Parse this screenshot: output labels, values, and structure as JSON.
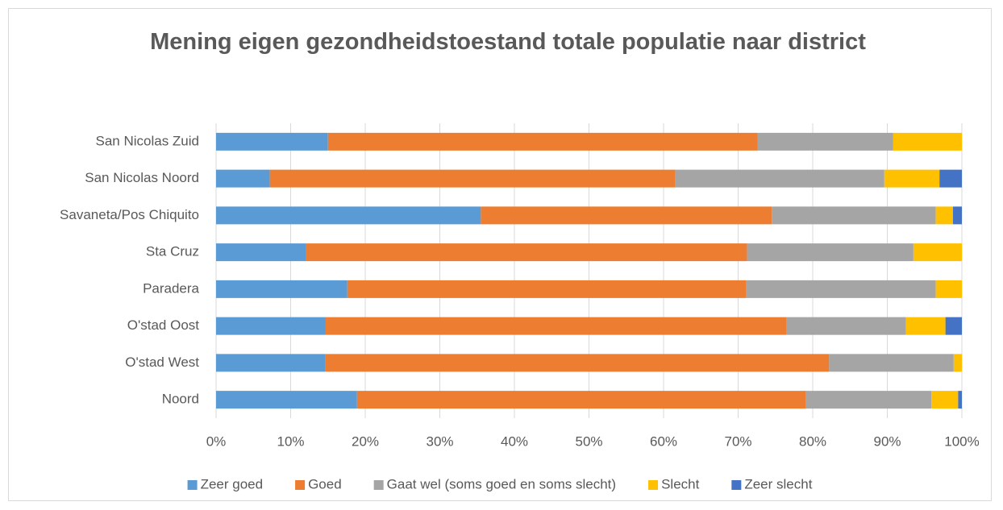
{
  "chart_data": {
    "type": "stacked_bar_horizontal",
    "title": "Mening eigen gezondheidstoestand totale populatie naar district",
    "categories": [
      "Noord",
      "O'stad West",
      "O'stad Oost",
      "Paradera",
      "Sta Cruz",
      "Savaneta/Pos Chiquito",
      "San Nicolas Noord",
      "San Nicolas Zuid"
    ],
    "series": [
      {
        "name": "Zeer goed",
        "color": "#5b9bd5",
        "values": [
          18.9,
          14.6,
          14.7,
          17.6,
          12.0,
          35.5,
          7.2,
          15.0
        ]
      },
      {
        "name": "Goed",
        "color": "#ed7d31",
        "values": [
          60.2,
          67.6,
          61.8,
          53.5,
          59.2,
          39.0,
          54.4,
          57.6
        ]
      },
      {
        "name": "Gaat wel (soms goed en soms slecht)",
        "color": "#a5a5a5",
        "values": [
          16.8,
          16.7,
          16.0,
          25.4,
          22.3,
          22.0,
          28.0,
          18.2
        ]
      },
      {
        "name": "Slecht",
        "color": "#ffc000",
        "values": [
          3.6,
          1.1,
          5.3,
          3.5,
          6.5,
          2.3,
          7.4,
          9.2
        ]
      },
      {
        "name": "Zeer slecht",
        "color": "#4472c4",
        "values": [
          0.5,
          0,
          2.2,
          0,
          0,
          1.2,
          3.0,
          0
        ]
      }
    ],
    "xlim": [
      0,
      100
    ],
    "xticks": [
      {
        "value": 0,
        "label": "0%"
      },
      {
        "value": 10,
        "label": "10%"
      },
      {
        "value": 20,
        "label": "20%"
      },
      {
        "value": 30,
        "label": "30%"
      },
      {
        "value": 40,
        "label": "40%"
      },
      {
        "value": 50,
        "label": "50%"
      },
      {
        "value": 60,
        "label": "60%"
      },
      {
        "value": 70,
        "label": "70%"
      },
      {
        "value": 80,
        "label": "80%"
      },
      {
        "value": 90,
        "label": "90%"
      },
      {
        "value": 100,
        "label": "100%"
      }
    ],
    "grid": true,
    "legend": "bottom"
  }
}
